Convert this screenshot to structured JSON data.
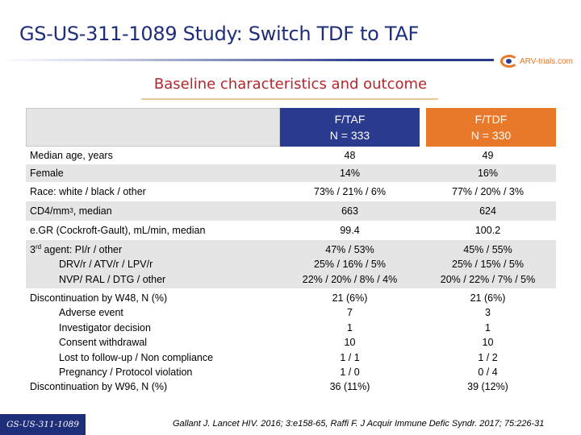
{
  "title": "GS-US-311-1089 Study: Switch TDF to TAF",
  "logo_text": "ARV-trials.com",
  "subtitle": "Baseline characteristics and outcome",
  "table": {
    "col1_header": [
      "F/TAF",
      "N = 333"
    ],
    "col2_header": [
      "F/TDF",
      "N = 330"
    ],
    "rows": [
      {
        "label": "Median age, years",
        "c1": "48",
        "c2": "49"
      },
      {
        "label": "Female",
        "c1": "14%",
        "c2": "16%"
      },
      {
        "label": "Race: white / black / other",
        "c1": "73% / 21% / 6%",
        "c2": "77% / 20% / 3%"
      },
      {
        "label_pre": "CD4/mm",
        "label_sup": "3",
        "label_post": ", median",
        "c1": "663",
        "c2": "624"
      },
      {
        "label": "e.GR (Cockroft-Gault), mL/min, median",
        "c1": "99.4",
        "c2": "100.2"
      },
      {
        "label_pre": "3",
        "label_sup": "rd",
        "label_post": " agent: PI/r / other",
        "label2": "DRV/r / ATV/r / LPV/r",
        "label3": "NVP/ RAL / DTG / other",
        "c1": [
          "47% / 53%",
          "25% / 16% / 5%",
          "22% / 20% / 8% / 4%"
        ],
        "c2": [
          "45% / 55%",
          "25% / 15% / 5%",
          "20% / 22% / 7% / 5%"
        ]
      },
      {
        "labels": [
          "Discontinuation by W48, N (%)",
          "Adverse event",
          "Investigator decision",
          "Consent withdrawal",
          "Lost to follow-up / Non compliance",
          "Pregnancy / Protocol violation",
          "Discontinuation by W96, N (%)"
        ],
        "c1": [
          "21 (6%)",
          "7",
          "1",
          "10",
          "1 / 1",
          "1 / 0",
          "36 (11%)"
        ],
        "c2": [
          "21 (6%)",
          "3",
          "1",
          "10",
          "1 / 2",
          "0 / 4",
          "39 (12%)"
        ]
      }
    ]
  },
  "footer": {
    "badge": "GS-US-311-1089",
    "reference": "Gallant J. Lancet HIV. 2016; 3:e158-65, Raffi F. J Acquir Immune Defic Syndr. 2017; 75:226-31"
  },
  "colors": {
    "title": "#1f2e7a",
    "subtitle": "#b3272d",
    "taf": "#2a3b8f",
    "tdf": "#e8782a"
  }
}
